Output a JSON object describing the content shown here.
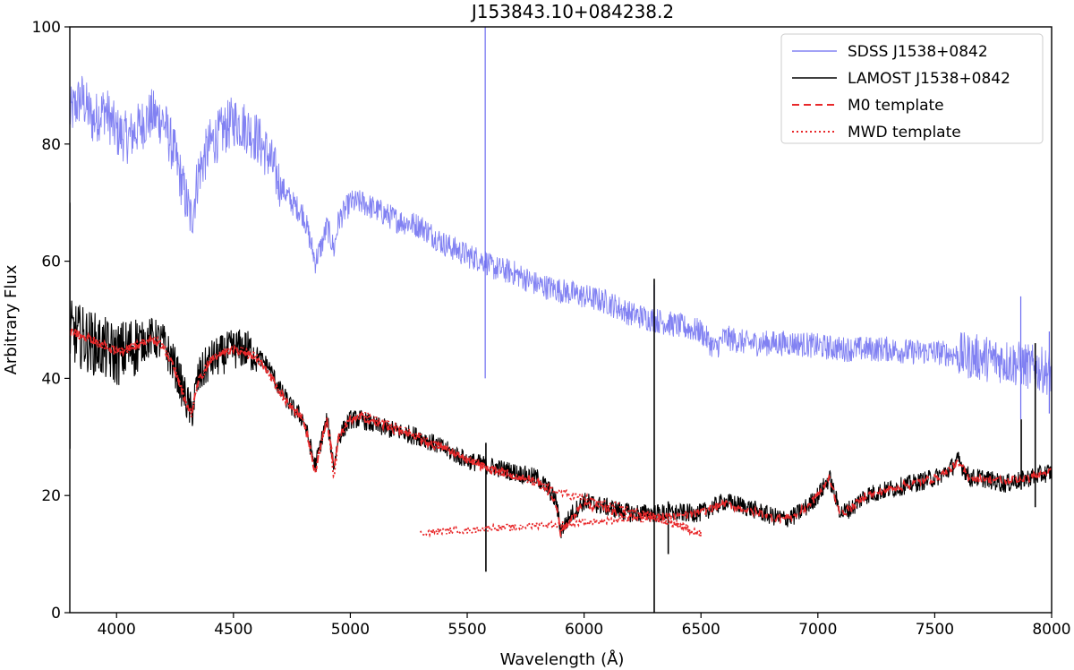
{
  "chart_data": {
    "type": "line",
    "title": "J153843.10+084238.2",
    "xlabel": "Wavelength (Å)",
    "ylabel": "Arbitrary Flux",
    "xlim": [
      3800,
      8000
    ],
    "ylim": [
      0,
      100
    ],
    "xticks": [
      4000,
      4500,
      5000,
      5500,
      6000,
      6500,
      7000,
      7500,
      8000
    ],
    "yticks": [
      0,
      20,
      40,
      60,
      80,
      100
    ],
    "grid": false,
    "legend_position": "top-right",
    "series": [
      {
        "name": "SDSS J1538+0842",
        "color": "#6b6bf0",
        "style": "solid",
        "x": [
          3800,
          3850,
          3900,
          3950,
          4000,
          4050,
          4100,
          4150,
          4200,
          4250,
          4300,
          4320,
          4350,
          4400,
          4450,
          4500,
          4550,
          4600,
          4650,
          4700,
          4750,
          4800,
          4850,
          4880,
          4900,
          4930,
          4950,
          5000,
          5050,
          5100,
          5200,
          5300,
          5400,
          5500,
          5580,
          5600,
          5700,
          5800,
          5900,
          6000,
          6100,
          6200,
          6300,
          6400,
          6500,
          6560,
          6600,
          6700,
          6800,
          6900,
          7000,
          7100,
          7200,
          7300,
          7400,
          7500,
          7600,
          7700,
          7800,
          7900,
          8000
        ],
        "y": [
          85,
          88,
          84,
          86,
          82,
          81,
          83,
          85,
          84,
          78,
          70,
          67,
          75,
          80,
          82,
          84,
          83,
          81,
          78,
          73,
          70,
          68,
          60,
          63,
          66,
          62,
          67,
          70,
          70,
          69,
          67,
          66,
          63,
          61,
          60,
          59,
          58,
          56,
          55,
          54,
          53,
          51,
          50,
          49,
          48,
          45,
          47,
          46,
          46,
          46,
          45.5,
          45,
          45,
          45,
          44.5,
          44.5,
          44,
          43.5,
          43,
          42,
          41
        ],
        "spikes": [
          {
            "x": 5577,
            "y": [
              40,
              100
            ]
          },
          {
            "x": 6300,
            "y": [
              48,
              56
            ]
          },
          {
            "x": 7868,
            "y": [
              33,
              54
            ]
          },
          {
            "x": 7990,
            "y": [
              34,
              48
            ]
          }
        ]
      },
      {
        "name": "LAMOST J1538+0842",
        "color": "#000000",
        "style": "solid",
        "x": [
          3800,
          3850,
          3900,
          3950,
          4000,
          4050,
          4100,
          4150,
          4200,
          4250,
          4300,
          4320,
          4350,
          4400,
          4450,
          4500,
          4550,
          4600,
          4650,
          4700,
          4750,
          4800,
          4850,
          4880,
          4900,
          4930,
          4950,
          5000,
          5050,
          5100,
          5200,
          5300,
          5400,
          5500,
          5600,
          5700,
          5800,
          5850,
          5880,
          5900,
          5950,
          6000,
          6100,
          6200,
          6300,
          6400,
          6500,
          6550,
          6600,
          6700,
          6800,
          6860,
          6900,
          6950,
          7000,
          7050,
          7080,
          7100,
          7150,
          7200,
          7300,
          7400,
          7500,
          7550,
          7600,
          7650,
          7700,
          7800,
          7900,
          8000
        ],
        "y": [
          48,
          47,
          46,
          45,
          44,
          45,
          46,
          47,
          46,
          42,
          36,
          34,
          40,
          43,
          44,
          45,
          45,
          44,
          42,
          38,
          35,
          33,
          25,
          30,
          33,
          25,
          30,
          33,
          33,
          32,
          31,
          30,
          28,
          26,
          25,
          24,
          23,
          21,
          19,
          14,
          17,
          19,
          18,
          17,
          17,
          17,
          17,
          18,
          19,
          18,
          16.5,
          16,
          16.5,
          18,
          20,
          23,
          19,
          17,
          18,
          20,
          21,
          22,
          23,
          24,
          26,
          23,
          23,
          22,
          23,
          24
        ],
        "spikes": [
          {
            "x": 3800,
            "y": [
              28,
              70
            ]
          },
          {
            "x": 5580,
            "y": [
              7,
              29
            ]
          },
          {
            "x": 6300,
            "y": [
              0,
              57
            ]
          },
          {
            "x": 6360,
            "y": [
              10,
              19
            ]
          },
          {
            "x": 7930,
            "y": [
              18,
              46
            ]
          },
          {
            "x": 7870,
            "y": [
              21,
              33
            ]
          }
        ]
      },
      {
        "name": "M0 template",
        "color": "#e8282a",
        "style": "dashed",
        "x": [
          3800,
          3850,
          3900,
          3950,
          4000,
          4050,
          4100,
          4150,
          4200,
          4250,
          4300,
          4320,
          4350,
          4400,
          4450,
          4500,
          4550,
          4600,
          4650,
          4700,
          4750,
          4800,
          4850,
          4880,
          4900,
          4930,
          4950,
          5000,
          5050,
          5100,
          5200,
          5300,
          5400,
          5500,
          5600,
          5700,
          5800,
          5850,
          5880,
          5900,
          5950,
          6000,
          6100,
          6200,
          6300,
          6400,
          6500,
          6550,
          6600,
          6700,
          6800,
          6860,
          6900,
          6950,
          7000,
          7050,
          7080,
          7100,
          7150,
          7200,
          7300,
          7400,
          7500,
          7550,
          7600,
          7650,
          7700,
          7800,
          7900,
          8000
        ],
        "y": [
          48,
          47.5,
          46.5,
          45.5,
          44.5,
          45,
          46,
          46.5,
          45.5,
          41.5,
          35.5,
          34,
          39.5,
          43,
          44.5,
          45,
          44.5,
          43.5,
          41,
          37.5,
          35,
          33,
          24,
          30,
          33,
          25,
          30,
          33,
          33.5,
          32.5,
          31,
          29.5,
          28,
          26,
          24.5,
          23.5,
          22.5,
          20.5,
          18.5,
          13.5,
          16.5,
          18.5,
          17.5,
          16.5,
          16.5,
          16.5,
          17,
          18,
          18.5,
          17.5,
          16.5,
          16,
          16.5,
          18,
          20,
          23,
          19,
          17,
          18,
          20,
          21,
          22,
          23,
          24,
          25.5,
          23,
          23,
          22.5,
          23,
          24
        ]
      },
      {
        "name": "MWD template",
        "color": "#e8282a",
        "style": "dotted",
        "x": [
          3800,
          3850,
          3900,
          3950,
          4000,
          4050,
          4100,
          4150,
          4200,
          4250,
          4300,
          4320,
          4350,
          4400,
          4450,
          4500,
          4550,
          4600,
          4650,
          4700,
          4750,
          4800,
          4850,
          4880,
          4900,
          4930,
          4950,
          5000,
          5050,
          5100,
          5200,
          5300,
          5400,
          5500,
          5600,
          5700,
          5800,
          5900,
          6000,
          6100,
          6200,
          6300,
          6400,
          6500
        ],
        "y": [
          48,
          47,
          46.5,
          45.5,
          44.5,
          45,
          46,
          47,
          45.5,
          41.5,
          35.5,
          34,
          39.5,
          43,
          44.5,
          45,
          44.5,
          43.5,
          41,
          37.5,
          35,
          33,
          24,
          30,
          33,
          23,
          30,
          33,
          34,
          33,
          31.5,
          30,
          28,
          26.5,
          24.5,
          23,
          22,
          20.5,
          19.5,
          18.5,
          17.5,
          16.5,
          15,
          13.5
        ],
        "segment2": {
          "x": [
            5300,
            5400,
            5500,
            5600,
            5700,
            5800,
            5900,
            6000,
            6100,
            6200,
            6300,
            6400,
            6450,
            6500
          ],
          "y": [
            13.5,
            14,
            14,
            14.5,
            14.5,
            15,
            15,
            15.5,
            15.5,
            16,
            16,
            15,
            14,
            13.5
          ]
        }
      }
    ]
  }
}
